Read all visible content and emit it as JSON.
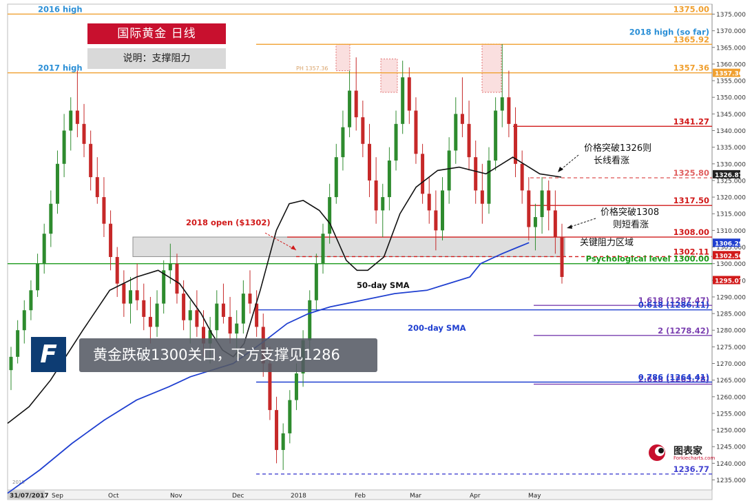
{
  "header": {
    "title": "国际黄金  日线",
    "subtitle": "说明：支撑阻力"
  },
  "banner": {
    "text": "黄金跌破1300关口，下方支撑见1286",
    "logo_letter": "F"
  },
  "watermark": {
    "name": "图表家",
    "sub": "Forkiecharts.com"
  },
  "chart_data": {
    "type": "candlestick",
    "instrument": "国际黄金",
    "timeframe": "日线",
    "y_range": [
      1232,
      1378
    ],
    "y_ticks": [
      1235,
      1240,
      1245,
      1250,
      1255,
      1260,
      1265,
      1270,
      1275,
      1280,
      1285,
      1290,
      1295,
      1300,
      1305,
      1310,
      1315,
      1320,
      1325,
      1330,
      1335,
      1340,
      1345,
      1350,
      1355,
      1360,
      1365,
      1370,
      1375
    ],
    "x_labels": [
      "31/07/2017",
      "Sep",
      "Oct",
      "Nov",
      "Dec",
      "2018",
      "Feb",
      "Mar",
      "Apr",
      "May"
    ],
    "year_marker": "2018",
    "last_price_tags": [
      "1357.36",
      "1326.87",
      "1306.29",
      "1302.56",
      "1295.07"
    ],
    "levels": [
      {
        "price": 1375.0,
        "label": "1375.00",
        "left_label": "2016 high",
        "color": "#f0a030",
        "style": "solid"
      },
      {
        "price": 1365.92,
        "label": "1365.92",
        "left_label": "",
        "color": "#f0a030",
        "style": "solid",
        "note": "2018 high (so far)"
      },
      {
        "price": 1357.36,
        "label": "1357.36",
        "left_label": "2017 high",
        "color": "#f0a030",
        "style": "solid"
      },
      {
        "price": 1341.27,
        "label": "1341.27",
        "left_label": "",
        "color": "#d11a1a",
        "style": "solid"
      },
      {
        "price": 1325.8,
        "label": "1325.80",
        "left_label": "",
        "color": "#e06060",
        "style": "dashed"
      },
      {
        "price": 1317.5,
        "label": "1317.50",
        "left_label": "",
        "color": "#d11a1a",
        "style": "solid"
      },
      {
        "price": 1308.0,
        "label": "1308.00",
        "left_label": "",
        "color": "#d11a1a",
        "style": "solid"
      },
      {
        "price": 1302.11,
        "label": "1302.11",
        "left_label": "",
        "color": "#d11a1a",
        "style": "dashed"
      },
      {
        "price": 1300.0,
        "label": "Psychological level 1300.00",
        "left_label": "",
        "color": "#1a9a1a",
        "style": "solid"
      },
      {
        "price": 1287.47,
        "label": "1.618 (1287.47)",
        "left_label": "",
        "color": "#7a3fb0",
        "style": "solid"
      },
      {
        "price": 1286.11,
        "label": "0.618 (1286.11)",
        "left_label": "",
        "color": "#1f3fd0",
        "style": "solid"
      },
      {
        "price": 1278.42,
        "label": "2 (1278.42)",
        "left_label": "",
        "color": "#7a3fb0",
        "style": "solid"
      },
      {
        "price": 1263.78,
        "label": "2.618 (1263.78)",
        "left_label": "",
        "color": "#7a3fb0",
        "style": "solid"
      },
      {
        "price": 1264.41,
        "label": "0.786 (1264.41)",
        "left_label": "",
        "color": "#1f3fd0",
        "style": "solid"
      },
      {
        "price": 1236.77,
        "label": "1236.77",
        "left_label": "",
        "color": "#4040d0",
        "style": "dashed"
      }
    ],
    "zone": {
      "label": "关键阻力区域",
      "from": 1302.11,
      "to": 1308.0
    },
    "annotations": [
      {
        "text": "2018 open ($1302)",
        "color": "#d11a1a"
      },
      {
        "text": "PH 1357.36",
        "color": "#d9a36a"
      },
      {
        "text": "价格突破1326则",
        "color": "#111111"
      },
      {
        "text": "长线看涨",
        "color": "#111111"
      },
      {
        "text": "价格突破1308",
        "color": "#111111"
      },
      {
        "text": "则短看涨",
        "color": "#111111"
      },
      {
        "text": "50-day SMA",
        "color": "#111111"
      },
      {
        "text": "200-day SMA",
        "color": "#1f3fd0"
      }
    ],
    "sma50": [
      [
        0,
        1252
      ],
      [
        20,
        1257
      ],
      [
        40,
        1265
      ],
      [
        70,
        1280
      ],
      [
        95,
        1292
      ],
      [
        120,
        1296
      ],
      [
        140,
        1298
      ],
      [
        160,
        1294
      ],
      [
        180,
        1285
      ],
      [
        190,
        1279
      ],
      [
        200,
        1274
      ],
      [
        210,
        1272
      ],
      [
        220,
        1276
      ],
      [
        235,
        1292
      ],
      [
        250,
        1310
      ],
      [
        262,
        1318
      ],
      [
        275,
        1319
      ],
      [
        290,
        1316
      ],
      [
        300,
        1312
      ],
      [
        315,
        1301
      ],
      [
        325,
        1298
      ],
      [
        335,
        1298
      ],
      [
        350,
        1302
      ],
      [
        365,
        1315
      ],
      [
        380,
        1323
      ],
      [
        400,
        1328
      ],
      [
        420,
        1329
      ],
      [
        445,
        1327
      ],
      [
        460,
        1330
      ],
      [
        470,
        1332
      ],
      [
        480,
        1330
      ],
      [
        495,
        1327
      ],
      [
        515,
        1326
      ]
    ],
    "sma200": [
      [
        0,
        1231
      ],
      [
        30,
        1238
      ],
      [
        60,
        1246
      ],
      [
        90,
        1253
      ],
      [
        120,
        1259
      ],
      [
        150,
        1263
      ],
      [
        170,
        1266
      ],
      [
        190,
        1268
      ],
      [
        210,
        1270
      ],
      [
        240,
        1277
      ],
      [
        260,
        1282
      ],
      [
        280,
        1285
      ],
      [
        300,
        1287
      ],
      [
        330,
        1289
      ],
      [
        360,
        1291
      ],
      [
        390,
        1292
      ],
      [
        410,
        1294
      ],
      [
        430,
        1296
      ],
      [
        440,
        1300
      ],
      [
        460,
        1303
      ],
      [
        475,
        1305
      ],
      [
        485,
        1306.3
      ]
    ],
    "candles": [
      [
        1268,
        1275,
        1262,
        1272
      ],
      [
        1272,
        1283,
        1270,
        1280
      ],
      [
        1280,
        1289,
        1276,
        1286
      ],
      [
        1286,
        1295,
        1283,
        1292
      ],
      [
        1292,
        1303,
        1290,
        1300
      ],
      [
        1300,
        1312,
        1297,
        1309
      ],
      [
        1309,
        1322,
        1305,
        1318
      ],
      [
        1318,
        1334,
        1315,
        1330
      ],
      [
        1330,
        1345,
        1326,
        1340
      ],
      [
        1340,
        1350,
        1334,
        1346
      ],
      [
        1346,
        1358,
        1338,
        1342
      ],
      [
        1342,
        1348,
        1332,
        1336
      ],
      [
        1336,
        1340,
        1322,
        1326
      ],
      [
        1326,
        1332,
        1318,
        1320
      ],
      [
        1320,
        1326,
        1308,
        1312
      ],
      [
        1312,
        1316,
        1298,
        1302
      ],
      [
        1302,
        1305,
        1290,
        1294
      ],
      [
        1294,
        1298,
        1284,
        1288
      ],
      [
        1288,
        1296,
        1282,
        1292
      ],
      [
        1292,
        1300,
        1286,
        1289
      ],
      [
        1289,
        1294,
        1280,
        1284
      ],
      [
        1284,
        1290,
        1276,
        1281
      ],
      [
        1281,
        1292,
        1278,
        1288
      ],
      [
        1288,
        1301,
        1285,
        1298
      ],
      [
        1298,
        1306,
        1294,
        1300
      ],
      [
        1300,
        1303,
        1288,
        1291
      ],
      [
        1291,
        1295,
        1280,
        1283
      ],
      [
        1283,
        1289,
        1276,
        1286
      ],
      [
        1286,
        1292,
        1278,
        1281
      ],
      [
        1281,
        1286,
        1272,
        1276
      ],
      [
        1276,
        1284,
        1270,
        1280
      ],
      [
        1280,
        1292,
        1277,
        1288
      ],
      [
        1288,
        1294,
        1282,
        1284
      ],
      [
        1284,
        1290,
        1276,
        1279
      ],
      [
        1279,
        1286,
        1272,
        1282
      ],
      [
        1282,
        1295,
        1279,
        1291
      ],
      [
        1291,
        1298,
        1285,
        1288
      ],
      [
        1288,
        1292,
        1278,
        1281
      ],
      [
        1281,
        1285,
        1266,
        1270
      ],
      [
        1270,
        1275,
        1253,
        1256
      ],
      [
        1256,
        1260,
        1240,
        1244
      ],
      [
        1244,
        1252,
        1238,
        1249
      ],
      [
        1249,
        1262,
        1246,
        1259
      ],
      [
        1259,
        1270,
        1256,
        1267
      ],
      [
        1267,
        1280,
        1263,
        1277
      ],
      [
        1277,
        1292,
        1274,
        1289
      ],
      [
        1289,
        1303,
        1286,
        1300
      ],
      [
        1300,
        1312,
        1297,
        1309
      ],
      [
        1309,
        1324,
        1306,
        1320
      ],
      [
        1320,
        1336,
        1318,
        1332
      ],
      [
        1332,
        1346,
        1328,
        1341
      ],
      [
        1341,
        1358,
        1338,
        1352
      ],
      [
        1352,
        1362,
        1340,
        1344
      ],
      [
        1344,
        1349,
        1332,
        1336
      ],
      [
        1336,
        1342,
        1320,
        1325
      ],
      [
        1325,
        1332,
        1312,
        1316
      ],
      [
        1316,
        1324,
        1308,
        1320
      ],
      [
        1320,
        1335,
        1316,
        1331
      ],
      [
        1331,
        1346,
        1328,
        1342
      ],
      [
        1342,
        1361,
        1339,
        1356
      ],
      [
        1356,
        1359,
        1342,
        1346
      ],
      [
        1346,
        1350,
        1330,
        1333
      ],
      [
        1333,
        1336,
        1318,
        1321
      ],
      [
        1321,
        1326,
        1312,
        1316
      ],
      [
        1316,
        1322,
        1304,
        1310
      ],
      [
        1310,
        1326,
        1307,
        1322
      ],
      [
        1322,
        1338,
        1318,
        1334
      ],
      [
        1334,
        1350,
        1330,
        1345
      ],
      [
        1345,
        1356,
        1338,
        1342
      ],
      [
        1342,
        1349,
        1328,
        1332
      ],
      [
        1332,
        1337,
        1318,
        1322
      ],
      [
        1322,
        1330,
        1312,
        1318
      ],
      [
        1318,
        1335,
        1315,
        1331
      ],
      [
        1331,
        1350,
        1328,
        1346
      ],
      [
        1346,
        1366,
        1341,
        1350
      ],
      [
        1350,
        1358,
        1338,
        1342
      ],
      [
        1342,
        1347,
        1326,
        1330
      ],
      [
        1330,
        1334,
        1318,
        1322
      ],
      [
        1322,
        1326,
        1307,
        1311
      ],
      [
        1311,
        1318,
        1304,
        1314
      ],
      [
        1314,
        1326,
        1309,
        1322
      ],
      [
        1322,
        1325,
        1310,
        1316
      ],
      [
        1316,
        1322,
        1303,
        1308
      ],
      [
        1308,
        1312,
        1294,
        1296
      ]
    ]
  }
}
